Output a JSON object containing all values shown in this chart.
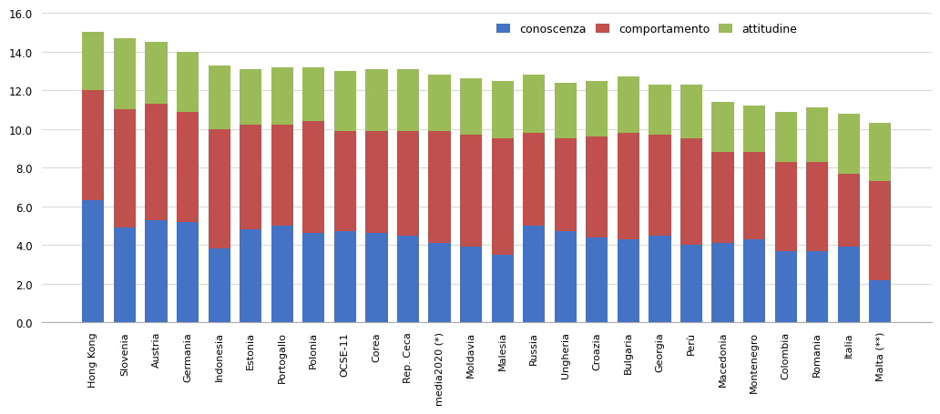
{
  "categories": [
    "Hong Kong",
    "Slovenia",
    "Austria",
    "Germania",
    "Indonesia",
    "Estonia",
    "Portogallo",
    "Polonia",
    "OCSE-11",
    "Corea",
    "Rep. Ceca",
    "media2020 (*)",
    "Moldavia",
    "Malesia",
    "Russia",
    "Ungheria",
    "Croazia",
    "Bulgaria",
    "Georgia",
    "Perù",
    "Macedonia",
    "Montenegro",
    "Colombia",
    "Romania",
    "Italia",
    "Malta (**)"
  ],
  "conoscenza": [
    6.3,
    4.9,
    5.3,
    5.2,
    3.8,
    4.8,
    5.0,
    4.6,
    4.7,
    4.6,
    4.5,
    4.1,
    3.9,
    3.5,
    5.0,
    4.7,
    4.4,
    4.3,
    4.5,
    4.0,
    4.1,
    4.3,
    3.7,
    3.7,
    3.9,
    2.2
  ],
  "comportamento": [
    5.7,
    6.1,
    6.0,
    5.7,
    6.2,
    5.4,
    5.2,
    5.8,
    5.2,
    5.3,
    5.4,
    5.8,
    5.8,
    6.0,
    4.8,
    4.8,
    5.2,
    5.5,
    5.2,
    5.5,
    4.7,
    4.5,
    4.6,
    4.6,
    3.8,
    5.1
  ],
  "attitudine": [
    3.0,
    3.7,
    3.2,
    3.1,
    3.3,
    2.9,
    3.0,
    2.8,
    3.1,
    3.2,
    3.2,
    2.9,
    2.9,
    3.0,
    3.0,
    2.9,
    2.9,
    2.9,
    2.6,
    2.8,
    2.6,
    2.4,
    2.6,
    2.8,
    3.1,
    3.0
  ],
  "color_conoscenza": "#4472C4",
  "color_comportamento": "#C0504D",
  "color_attitudine": "#9BBB59",
  "ylim": [
    0,
    16.0
  ],
  "yticks": [
    0.0,
    2.0,
    4.0,
    6.0,
    8.0,
    10.0,
    12.0,
    14.0,
    16.0
  ],
  "legend_labels": [
    "conoscenza",
    "comportamento",
    "attitudine"
  ],
  "background_color": "#FFFFFF",
  "grid_color": "#D9D9D9",
  "bar_width": 0.7
}
